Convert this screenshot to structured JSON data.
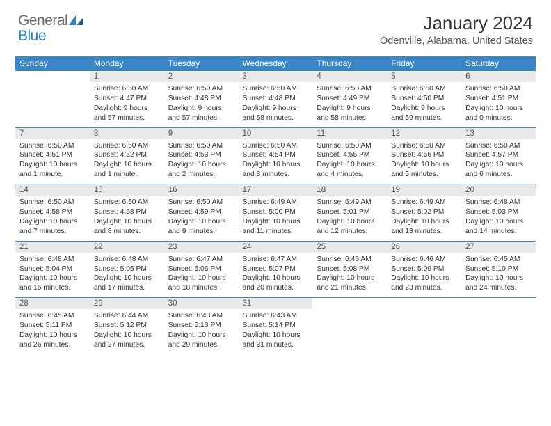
{
  "brand": {
    "part1": "General",
    "part2": "Blue"
  },
  "title": "January 2024",
  "location": "Odenville, Alabama, United States",
  "colors": {
    "header_bg": "#3b86c6",
    "header_text": "#ffffff",
    "daynum_bg": "#e9e9e9",
    "rule": "#3b86c6",
    "body_text": "#333333",
    "logo_gray": "#6a6a6a",
    "logo_blue": "#2a7fbf"
  },
  "weekdays": [
    "Sunday",
    "Monday",
    "Tuesday",
    "Wednesday",
    "Thursday",
    "Friday",
    "Saturday"
  ],
  "weeks": [
    [
      null,
      {
        "n": "1",
        "sr": "Sunrise: 6:50 AM",
        "ss": "Sunset: 4:47 PM",
        "d1": "Daylight: 9 hours",
        "d2": "and 57 minutes."
      },
      {
        "n": "2",
        "sr": "Sunrise: 6:50 AM",
        "ss": "Sunset: 4:48 PM",
        "d1": "Daylight: 9 hours",
        "d2": "and 57 minutes."
      },
      {
        "n": "3",
        "sr": "Sunrise: 6:50 AM",
        "ss": "Sunset: 4:48 PM",
        "d1": "Daylight: 9 hours",
        "d2": "and 58 minutes."
      },
      {
        "n": "4",
        "sr": "Sunrise: 6:50 AM",
        "ss": "Sunset: 4:49 PM",
        "d1": "Daylight: 9 hours",
        "d2": "and 58 minutes."
      },
      {
        "n": "5",
        "sr": "Sunrise: 6:50 AM",
        "ss": "Sunset: 4:50 PM",
        "d1": "Daylight: 9 hours",
        "d2": "and 59 minutes."
      },
      {
        "n": "6",
        "sr": "Sunrise: 6:50 AM",
        "ss": "Sunset: 4:51 PM",
        "d1": "Daylight: 10 hours",
        "d2": "and 0 minutes."
      }
    ],
    [
      {
        "n": "7",
        "sr": "Sunrise: 6:50 AM",
        "ss": "Sunset: 4:51 PM",
        "d1": "Daylight: 10 hours",
        "d2": "and 1 minute."
      },
      {
        "n": "8",
        "sr": "Sunrise: 6:50 AM",
        "ss": "Sunset: 4:52 PM",
        "d1": "Daylight: 10 hours",
        "d2": "and 1 minute."
      },
      {
        "n": "9",
        "sr": "Sunrise: 6:50 AM",
        "ss": "Sunset: 4:53 PM",
        "d1": "Daylight: 10 hours",
        "d2": "and 2 minutes."
      },
      {
        "n": "10",
        "sr": "Sunrise: 6:50 AM",
        "ss": "Sunset: 4:54 PM",
        "d1": "Daylight: 10 hours",
        "d2": "and 3 minutes."
      },
      {
        "n": "11",
        "sr": "Sunrise: 6:50 AM",
        "ss": "Sunset: 4:55 PM",
        "d1": "Daylight: 10 hours",
        "d2": "and 4 minutes."
      },
      {
        "n": "12",
        "sr": "Sunrise: 6:50 AM",
        "ss": "Sunset: 4:56 PM",
        "d1": "Daylight: 10 hours",
        "d2": "and 5 minutes."
      },
      {
        "n": "13",
        "sr": "Sunrise: 6:50 AM",
        "ss": "Sunset: 4:57 PM",
        "d1": "Daylight: 10 hours",
        "d2": "and 6 minutes."
      }
    ],
    [
      {
        "n": "14",
        "sr": "Sunrise: 6:50 AM",
        "ss": "Sunset: 4:58 PM",
        "d1": "Daylight: 10 hours",
        "d2": "and 7 minutes."
      },
      {
        "n": "15",
        "sr": "Sunrise: 6:50 AM",
        "ss": "Sunset: 4:58 PM",
        "d1": "Daylight: 10 hours",
        "d2": "and 8 minutes."
      },
      {
        "n": "16",
        "sr": "Sunrise: 6:50 AM",
        "ss": "Sunset: 4:59 PM",
        "d1": "Daylight: 10 hours",
        "d2": "and 9 minutes."
      },
      {
        "n": "17",
        "sr": "Sunrise: 6:49 AM",
        "ss": "Sunset: 5:00 PM",
        "d1": "Daylight: 10 hours",
        "d2": "and 11 minutes."
      },
      {
        "n": "18",
        "sr": "Sunrise: 6:49 AM",
        "ss": "Sunset: 5:01 PM",
        "d1": "Daylight: 10 hours",
        "d2": "and 12 minutes."
      },
      {
        "n": "19",
        "sr": "Sunrise: 6:49 AM",
        "ss": "Sunset: 5:02 PM",
        "d1": "Daylight: 10 hours",
        "d2": "and 13 minutes."
      },
      {
        "n": "20",
        "sr": "Sunrise: 6:48 AM",
        "ss": "Sunset: 5:03 PM",
        "d1": "Daylight: 10 hours",
        "d2": "and 14 minutes."
      }
    ],
    [
      {
        "n": "21",
        "sr": "Sunrise: 6:48 AM",
        "ss": "Sunset: 5:04 PM",
        "d1": "Daylight: 10 hours",
        "d2": "and 16 minutes."
      },
      {
        "n": "22",
        "sr": "Sunrise: 6:48 AM",
        "ss": "Sunset: 5:05 PM",
        "d1": "Daylight: 10 hours",
        "d2": "and 17 minutes."
      },
      {
        "n": "23",
        "sr": "Sunrise: 6:47 AM",
        "ss": "Sunset: 5:06 PM",
        "d1": "Daylight: 10 hours",
        "d2": "and 18 minutes."
      },
      {
        "n": "24",
        "sr": "Sunrise: 6:47 AM",
        "ss": "Sunset: 5:07 PM",
        "d1": "Daylight: 10 hours",
        "d2": "and 20 minutes."
      },
      {
        "n": "25",
        "sr": "Sunrise: 6:46 AM",
        "ss": "Sunset: 5:08 PM",
        "d1": "Daylight: 10 hours",
        "d2": "and 21 minutes."
      },
      {
        "n": "26",
        "sr": "Sunrise: 6:46 AM",
        "ss": "Sunset: 5:09 PM",
        "d1": "Daylight: 10 hours",
        "d2": "and 23 minutes."
      },
      {
        "n": "27",
        "sr": "Sunrise: 6:45 AM",
        "ss": "Sunset: 5:10 PM",
        "d1": "Daylight: 10 hours",
        "d2": "and 24 minutes."
      }
    ],
    [
      {
        "n": "28",
        "sr": "Sunrise: 6:45 AM",
        "ss": "Sunset: 5:11 PM",
        "d1": "Daylight: 10 hours",
        "d2": "and 26 minutes."
      },
      {
        "n": "29",
        "sr": "Sunrise: 6:44 AM",
        "ss": "Sunset: 5:12 PM",
        "d1": "Daylight: 10 hours",
        "d2": "and 27 minutes."
      },
      {
        "n": "30",
        "sr": "Sunrise: 6:43 AM",
        "ss": "Sunset: 5:13 PM",
        "d1": "Daylight: 10 hours",
        "d2": "and 29 minutes."
      },
      {
        "n": "31",
        "sr": "Sunrise: 6:43 AM",
        "ss": "Sunset: 5:14 PM",
        "d1": "Daylight: 10 hours",
        "d2": "and 31 minutes."
      },
      null,
      null,
      null
    ]
  ]
}
